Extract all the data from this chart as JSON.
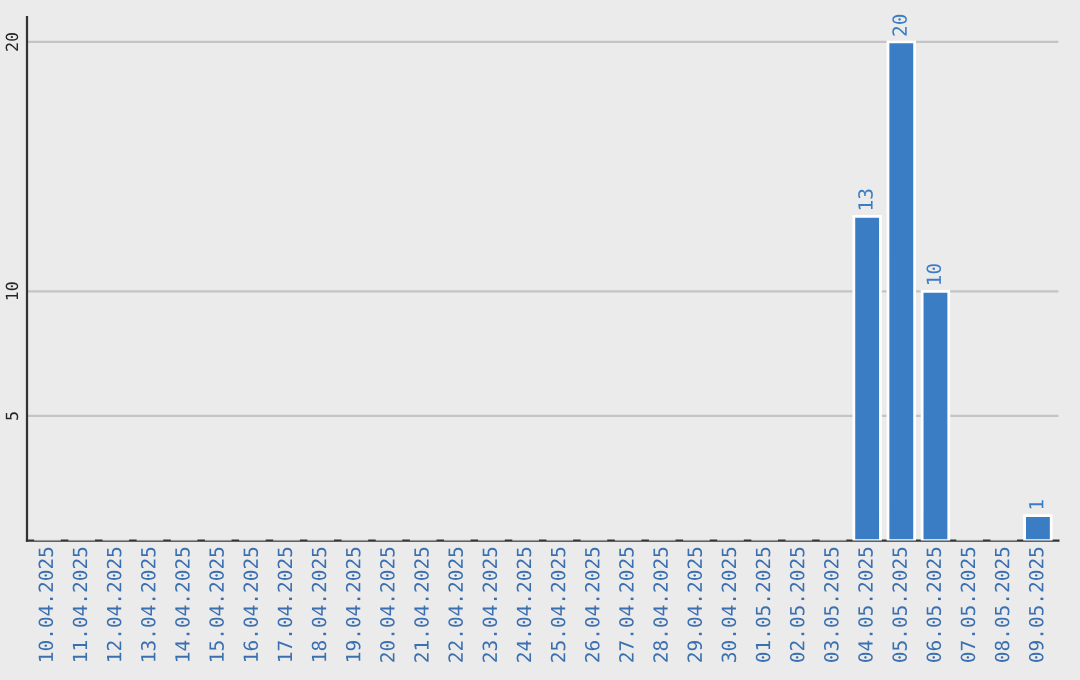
{
  "chart_data": {
    "type": "bar",
    "categories": [
      "10.04.2025",
      "11.04.2025",
      "12.04.2025",
      "13.04.2025",
      "14.04.2025",
      "15.04.2025",
      "16.04.2025",
      "17.04.2025",
      "18.04.2025",
      "19.04.2025",
      "20.04.2025",
      "21.04.2025",
      "22.04.2025",
      "23.04.2025",
      "24.04.2025",
      "25.04.2025",
      "26.04.2025",
      "27.04.2025",
      "28.04.2025",
      "29.04.2025",
      "30.04.2025",
      "01.05.2025",
      "02.05.2025",
      "03.05.2025",
      "04.05.2025",
      "05.05.2025",
      "06.05.2025",
      "07.05.2025",
      "08.05.2025",
      "09.05.2025"
    ],
    "values": [
      null,
      null,
      null,
      null,
      null,
      null,
      null,
      null,
      null,
      null,
      null,
      null,
      null,
      null,
      null,
      null,
      null,
      null,
      null,
      null,
      null,
      null,
      null,
      null,
      13,
      20,
      10,
      null,
      null,
      1
    ],
    "color": "#3b7dc4",
    "ylim": [
      0,
      21
    ],
    "yticks": [
      5,
      10,
      20
    ],
    "grid": "y",
    "data_labels": true
  }
}
